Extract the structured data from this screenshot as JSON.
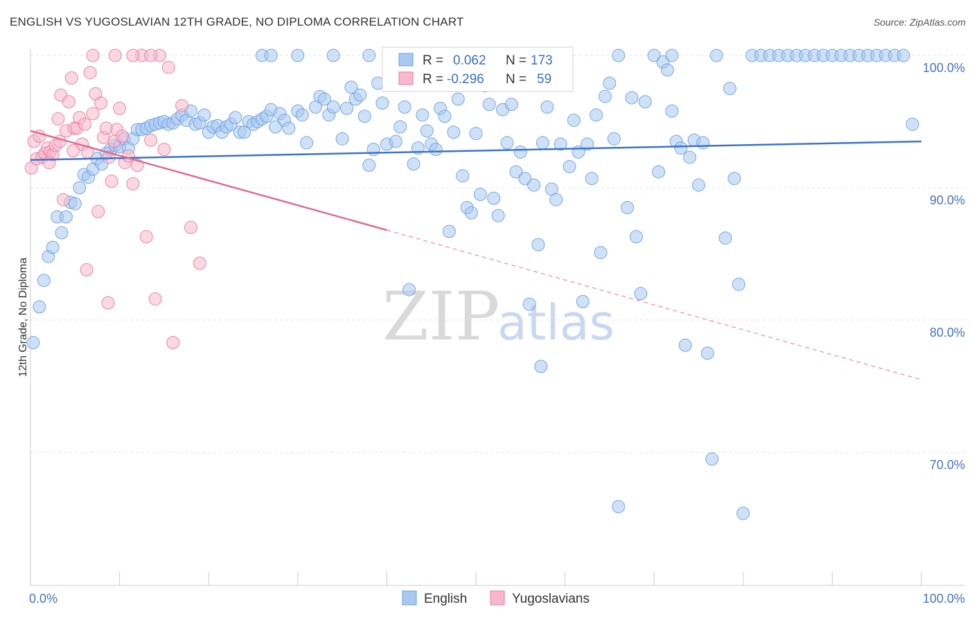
{
  "header": {
    "title": "ENGLISH VS YUGOSLAVIAN 12TH GRADE, NO DIPLOMA CORRELATION CHART",
    "source": "Source: ZipAtlas.com"
  },
  "watermark": {
    "zip": "ZIP",
    "atlas": "atlas"
  },
  "legend": {
    "rows": [
      {
        "r_label": "R =",
        "r_value": "0.062",
        "n_label": "N =",
        "n_value": "173",
        "color": "#a8c8f0"
      },
      {
        "r_label": "R =",
        "r_value": "-0.296",
        "n_label": "N =",
        "n_value": "59",
        "color": "#f7b8cb"
      }
    ]
  },
  "bottom_legend": [
    {
      "label": "English",
      "color": "#a8c8f0"
    },
    {
      "label": "Yugoslavians",
      "color": "#f7b8cb"
    }
  ],
  "chart_data": {
    "type": "scatter",
    "ylabel": "12th Grade, No Diploma",
    "xlabel": "",
    "xlim": [
      0,
      100
    ],
    "ylim": [
      60.5,
      101.5
    ],
    "x_tick_labels": {
      "left": "0.0%",
      "right": "100.0%"
    },
    "y_ticks": [
      {
        "value": 100,
        "label": "100.0%"
      },
      {
        "value": 90,
        "label": "90.0%"
      },
      {
        "value": 80,
        "label": "80.0%"
      },
      {
        "value": 70,
        "label": "70.0%"
      }
    ],
    "grid": true,
    "legend_position": "top-center",
    "series": [
      {
        "name": "English",
        "color": "#6a9fe0",
        "fill": "#a8c8f0",
        "trend": {
          "x": [
            0,
            100
          ],
          "y": [
            92.1,
            93.5
          ],
          "style": "solid"
        },
        "points": [
          [
            0.3,
            78.3
          ],
          [
            1,
            81
          ],
          [
            1.5,
            83
          ],
          [
            2,
            84.8
          ],
          [
            2.5,
            85.5
          ],
          [
            3,
            87.8
          ],
          [
            3.5,
            86.6
          ],
          [
            4,
            87.8
          ],
          [
            4.5,
            88.9
          ],
          [
            5,
            88.8
          ],
          [
            5.5,
            90
          ],
          [
            6,
            91
          ],
          [
            6.5,
            90.8
          ],
          [
            7,
            91.4
          ],
          [
            7.5,
            92.2
          ],
          [
            8,
            91.8
          ],
          [
            8.5,
            92.6
          ],
          [
            9,
            92.9
          ],
          [
            9.5,
            93.2
          ],
          [
            10,
            93.1
          ],
          [
            10.5,
            93.7
          ],
          [
            11,
            93
          ],
          [
            11.5,
            93.7
          ],
          [
            12,
            94.4
          ],
          [
            12.5,
            94.4
          ],
          [
            13,
            94.5
          ],
          [
            13.5,
            94.7
          ],
          [
            14,
            94.8
          ],
          [
            14.5,
            94.9
          ],
          [
            15,
            95
          ],
          [
            15.5,
            94.8
          ],
          [
            16,
            94.9
          ],
          [
            16.5,
            95.2
          ],
          [
            17,
            95.5
          ],
          [
            17.5,
            95.1
          ],
          [
            18,
            95.8
          ],
          [
            18.5,
            94.8
          ],
          [
            19,
            94.9
          ],
          [
            19.5,
            95.5
          ],
          [
            20,
            94.2
          ],
          [
            20.5,
            94.6
          ],
          [
            21,
            94.7
          ],
          [
            21.5,
            94.2
          ],
          [
            22,
            94.6
          ],
          [
            22.5,
            94.8
          ],
          [
            23,
            95.3
          ],
          [
            23.5,
            94.2
          ],
          [
            24,
            94.2
          ],
          [
            24.5,
            95
          ],
          [
            25,
            94.8
          ],
          [
            25.5,
            95
          ],
          [
            26,
            95.2
          ],
          [
            26.5,
            95.4
          ],
          [
            27,
            95.9
          ],
          [
            27.5,
            94.6
          ],
          [
            28,
            95.6
          ],
          [
            28.5,
            95.1
          ],
          [
            29,
            94.5
          ],
          [
            30,
            95.8
          ],
          [
            30.5,
            95.5
          ],
          [
            31,
            93.4
          ],
          [
            32,
            96.1
          ],
          [
            32.5,
            96.9
          ],
          [
            33,
            96.7
          ],
          [
            33.5,
            95.5
          ],
          [
            34,
            96.1
          ],
          [
            35,
            93.7
          ],
          [
            35.5,
            96
          ],
          [
            36,
            97.6
          ],
          [
            36.5,
            96.7
          ],
          [
            37,
            97
          ],
          [
            37.5,
            95.4
          ],
          [
            38,
            91.7
          ],
          [
            38.5,
            92.9
          ],
          [
            39,
            97.9
          ],
          [
            39.5,
            96.4
          ],
          [
            40,
            93.3
          ],
          [
            41,
            93.5
          ],
          [
            41.5,
            94.6
          ],
          [
            42,
            96.1
          ],
          [
            42.5,
            82.3
          ],
          [
            43,
            91.8
          ],
          [
            43.5,
            93
          ],
          [
            44,
            95.5
          ],
          [
            44.5,
            94.3
          ],
          [
            45,
            93.3
          ],
          [
            45.5,
            92.9
          ],
          [
            46,
            96
          ],
          [
            46.5,
            95.4
          ],
          [
            47,
            86.7
          ],
          [
            47.5,
            94.2
          ],
          [
            48,
            96.7
          ],
          [
            48.5,
            90.9
          ],
          [
            49,
            88.5
          ],
          [
            49.5,
            88.1
          ],
          [
            50,
            94.1
          ],
          [
            50.5,
            89.5
          ],
          [
            51,
            97.7
          ],
          [
            51.5,
            96.3
          ],
          [
            52,
            89.2
          ],
          [
            52.5,
            87.9
          ],
          [
            53,
            95.9
          ],
          [
            53.5,
            93.4
          ],
          [
            54,
            96.3
          ],
          [
            54.5,
            91.2
          ],
          [
            55,
            92.7
          ],
          [
            55.5,
            90.7
          ],
          [
            56,
            81.2
          ],
          [
            56.5,
            90.2
          ],
          [
            57,
            85.7
          ],
          [
            57.5,
            93.4
          ],
          [
            58,
            96.1
          ],
          [
            58.5,
            89.9
          ],
          [
            59,
            89.1
          ],
          [
            59.5,
            93.3
          ],
          [
            60,
            97.9
          ],
          [
            60.5,
            91.6
          ],
          [
            61,
            95.1
          ],
          [
            61.5,
            92.7
          ],
          [
            62,
            81.4
          ],
          [
            62.5,
            93.3
          ],
          [
            63,
            90.7
          ],
          [
            63.5,
            95.5
          ],
          [
            64,
            85.1
          ],
          [
            64.5,
            96.9
          ],
          [
            65,
            97.9
          ],
          [
            65.5,
            93.7
          ],
          [
            66,
            65.9
          ],
          [
            67,
            88.5
          ],
          [
            67.5,
            96.8
          ],
          [
            68,
            86.3
          ],
          [
            68.5,
            82
          ],
          [
            69,
            96.5
          ],
          [
            70,
            100
          ],
          [
            70.5,
            91.2
          ],
          [
            71,
            99.5
          ],
          [
            71.5,
            98.9
          ],
          [
            72,
            95.8
          ],
          [
            72.5,
            93.5
          ],
          [
            73,
            93
          ],
          [
            73.5,
            78.1
          ],
          [
            74,
            92.3
          ],
          [
            74.5,
            93.6
          ],
          [
            75,
            90.2
          ],
          [
            75.5,
            93.4
          ],
          [
            76,
            77.5
          ],
          [
            76.5,
            69.5
          ],
          [
            77,
            100
          ],
          [
            78,
            86.2
          ],
          [
            78.5,
            97.5
          ],
          [
            79,
            90.7
          ],
          [
            79.5,
            82.7
          ],
          [
            80,
            65.4
          ],
          [
            81,
            100
          ],
          [
            82,
            100
          ],
          [
            83,
            100
          ],
          [
            84,
            100
          ],
          [
            85,
            100
          ],
          [
            86,
            100
          ],
          [
            87,
            100
          ],
          [
            88,
            100
          ],
          [
            89,
            100
          ],
          [
            90,
            100
          ],
          [
            91,
            100
          ],
          [
            92,
            100
          ],
          [
            93,
            100
          ],
          [
            94,
            100
          ],
          [
            95,
            100
          ],
          [
            96,
            100
          ],
          [
            97,
            100
          ],
          [
            98,
            100
          ],
          [
            99,
            94.8
          ],
          [
            57.3,
            76.5
          ],
          [
            26,
            100
          ],
          [
            30,
            100
          ],
          [
            34,
            100
          ],
          [
            38,
            100
          ],
          [
            44,
            100
          ],
          [
            50,
            100
          ],
          [
            60,
            100
          ],
          [
            66,
            100
          ],
          [
            72,
            100
          ],
          [
            27,
            100
          ]
        ]
      },
      {
        "name": "Yugoslavians",
        "color": "#e87aa0",
        "fill": "#f7b8cb",
        "trend": {
          "x": [
            0,
            40
          ],
          "y": [
            94.3,
            86.8
          ],
          "style": "solid",
          "dashed_extension": {
            "x": [
              40,
              100
            ],
            "y": [
              86.8,
              75.5
            ]
          }
        },
        "points": [
          [
            0.1,
            91.5
          ],
          [
            0.4,
            93.5
          ],
          [
            0.7,
            92.2
          ],
          [
            1,
            93.9
          ],
          [
            1.3,
            92.3
          ],
          [
            1.6,
            92.6
          ],
          [
            1.9,
            93
          ],
          [
            2.2,
            92.7
          ],
          [
            2.5,
            92.5
          ],
          [
            2.8,
            93.2
          ],
          [
            3.1,
            95.2
          ],
          [
            3.4,
            97
          ],
          [
            3.7,
            89.1
          ],
          [
            4,
            94.3
          ],
          [
            4.3,
            96.5
          ],
          [
            4.6,
            98.3
          ],
          [
            4.9,
            94.5
          ],
          [
            5.2,
            94.5
          ],
          [
            5.5,
            95.3
          ],
          [
            5.8,
            93.3
          ],
          [
            6.1,
            94.8
          ],
          [
            6.4,
            92.7
          ],
          [
            6.7,
            98.7
          ],
          [
            7,
            95.6
          ],
          [
            7.3,
            97.1
          ],
          [
            7.6,
            88.2
          ],
          [
            7.9,
            96.4
          ],
          [
            8.2,
            93.8
          ],
          [
            8.5,
            94.5
          ],
          [
            8.8,
            92.3
          ],
          [
            9.1,
            90.5
          ],
          [
            9.4,
            93.5
          ],
          [
            9.7,
            94.4
          ],
          [
            10,
            96
          ],
          [
            10.3,
            93.9
          ],
          [
            10.6,
            91.9
          ],
          [
            11,
            92.4
          ],
          [
            11.5,
            90.3
          ],
          [
            12,
            91.7
          ],
          [
            12.5,
            100
          ],
          [
            13,
            86.3
          ],
          [
            13.5,
            93.6
          ],
          [
            14,
            81.6
          ],
          [
            14.5,
            100
          ],
          [
            15,
            92.9
          ],
          [
            15.5,
            99.1
          ],
          [
            16,
            78.3
          ],
          [
            17,
            96.2
          ],
          [
            18,
            87
          ],
          [
            19,
            84.3
          ],
          [
            7,
            100
          ],
          [
            9.5,
            100
          ],
          [
            11.5,
            100
          ],
          [
            13.5,
            100
          ],
          [
            6.3,
            83.8
          ],
          [
            8.7,
            81.3
          ],
          [
            3.3,
            93.5
          ],
          [
            4.8,
            92.8
          ],
          [
            2.1,
            91.9
          ]
        ]
      }
    ]
  }
}
